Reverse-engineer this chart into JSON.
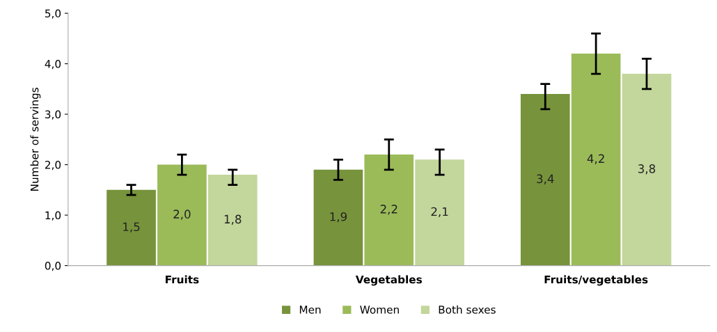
{
  "chart_data": {
    "type": "bar",
    "ylabel": "Number of servings",
    "categories": [
      "Fruits",
      "Vegetables",
      "Fruits/vegetables"
    ],
    "series": [
      {
        "name": "Men",
        "color": "#77933c",
        "values": [
          1.5,
          1.9,
          3.4
        ],
        "value_labels": [
          "1,5",
          "1,9",
          "3,4"
        ],
        "errors": [
          [
            1.4,
            1.6
          ],
          [
            1.7,
            2.1
          ],
          [
            3.1,
            3.6
          ]
        ]
      },
      {
        "name": "Women",
        "color": "#9bbb59",
        "values": [
          2.0,
          2.2,
          4.2
        ],
        "value_labels": [
          "2,0",
          "2,2",
          "4,2"
        ],
        "errors": [
          [
            1.8,
            2.2
          ],
          [
            1.9,
            2.5
          ],
          [
            3.8,
            4.6
          ]
        ]
      },
      {
        "name": "Both sexes",
        "color": "#c3d69b",
        "values": [
          1.8,
          2.1,
          3.8
        ],
        "value_labels": [
          "1,8",
          "2,1",
          "3,8"
        ],
        "errors": [
          [
            1.6,
            1.9
          ],
          [
            1.8,
            2.3
          ],
          [
            3.5,
            4.1
          ]
        ]
      }
    ],
    "ylim": [
      0,
      5
    ],
    "yticks": [
      {
        "value": 0,
        "label": "0,0"
      },
      {
        "value": 1,
        "label": "1,0"
      },
      {
        "value": 2,
        "label": "2,0"
      },
      {
        "value": 3,
        "label": "3,0"
      },
      {
        "value": 4,
        "label": "4,0"
      },
      {
        "value": 5,
        "label": "5,0"
      }
    ],
    "grid": false,
    "legend": "bottom"
  }
}
